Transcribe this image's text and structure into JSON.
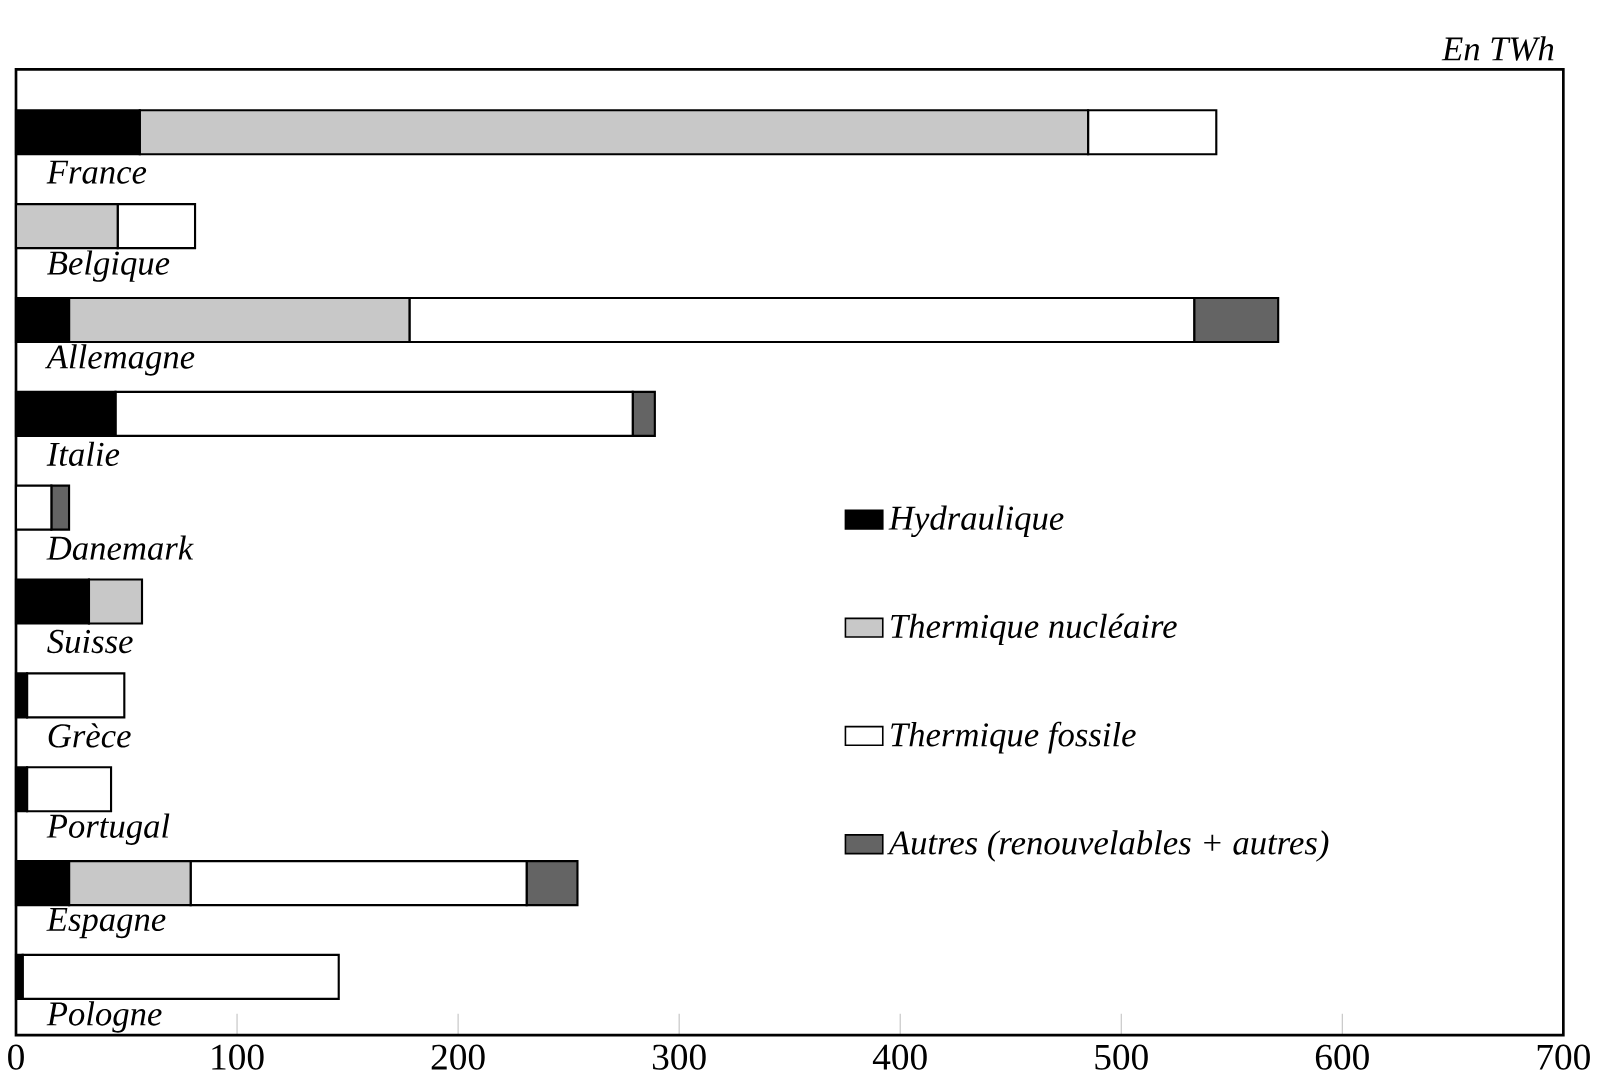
{
  "chart_data": {
    "type": "bar",
    "orientation": "horizontal",
    "stacked": true,
    "xlabel": "En TWh",
    "categories": [
      "France",
      "Belgique",
      "Allemagne",
      "Italie",
      "Danemark",
      "Suisse",
      "Grèce",
      "Portugal",
      "Espagne",
      "Pologne"
    ],
    "series": [
      {
        "name": "Hydraulique",
        "color": "#000000",
        "values": [
          56,
          0,
          24,
          45,
          0,
          33,
          5,
          5,
          24,
          3
        ]
      },
      {
        "name": "Thermique nucléaire",
        "color": "#c8c8c8",
        "values": [
          429,
          46,
          154,
          0,
          0,
          24,
          0,
          0,
          55,
          0
        ]
      },
      {
        "name": "Thermique fossile",
        "color": "#ffffff",
        "values": [
          58,
          35,
          355,
          234,
          16,
          0,
          44,
          38,
          152,
          143
        ]
      },
      {
        "name": "Autres (renouvelables + autres)",
        "color": "#646464",
        "values": [
          0,
          0,
          38,
          10,
          8,
          0,
          0,
          0,
          23,
          0
        ]
      }
    ],
    "xlim": [
      0,
      700
    ],
    "xticks": [
      0,
      100,
      200,
      300,
      400,
      500,
      600,
      700
    ],
    "legend": "right"
  }
}
